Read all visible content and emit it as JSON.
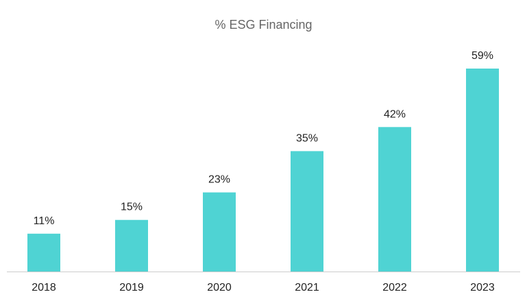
{
  "chart_data": {
    "type": "bar",
    "title": "% ESG Financing",
    "xlabel": "",
    "ylabel": "",
    "categories": [
      "2018",
      "2019",
      "2020",
      "2021",
      "2022",
      "2023"
    ],
    "values": [
      11,
      15,
      23,
      35,
      42,
      59
    ],
    "value_labels": [
      "11%",
      "15%",
      "23%",
      "35%",
      "42%",
      "59%"
    ],
    "ylim": [
      0,
      60
    ],
    "grid": false,
    "legend": "none",
    "bar_color": "#4fd3d3",
    "axis_color": "#cccccc"
  }
}
